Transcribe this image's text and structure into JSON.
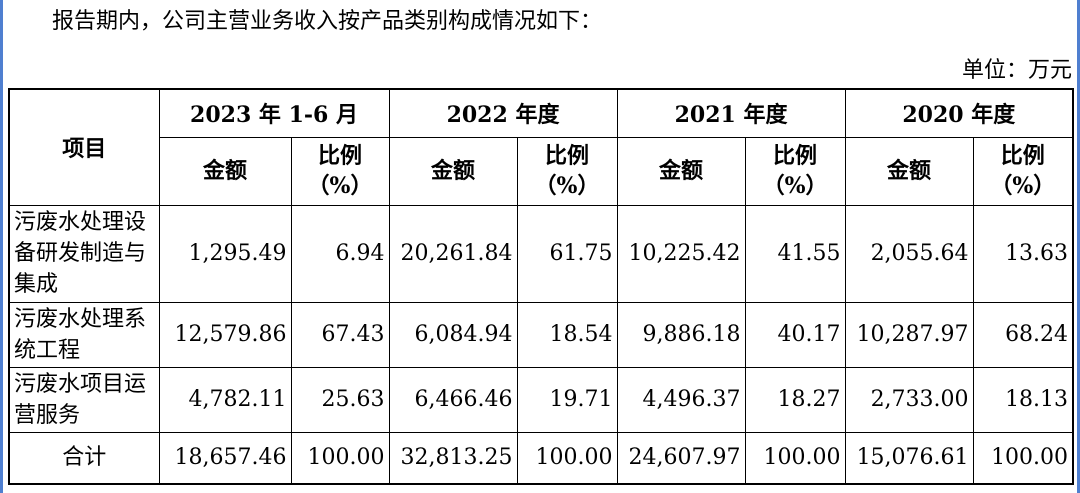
{
  "intro": "报告期内，公司主营业务收入按产品类别构成情况如下：",
  "unit": "单位：万元",
  "table": {
    "item_header": "项目",
    "periods": [
      "2023 年 1-6 月",
      "2022 年度",
      "2021 年度",
      "2020 年度"
    ],
    "amount_header": "金额",
    "ratio_header": "比例",
    "ratio_unit": "（%）",
    "rows": [
      {
        "name": "污废水处理设备研发制造与集成",
        "cells": [
          "1,295.49",
          "6.94",
          "20,261.84",
          "61.75",
          "10,225.42",
          "41.55",
          "2,055.64",
          "13.63"
        ]
      },
      {
        "name": "污废水处理系统工程",
        "cells": [
          "12,579.86",
          "67.43",
          "6,084.94",
          "18.54",
          "9,886.18",
          "40.17",
          "10,287.97",
          "68.24"
        ]
      },
      {
        "name": "污废水项目运营服务",
        "cells": [
          "4,782.11",
          "25.63",
          "6,466.46",
          "19.71",
          "4,496.37",
          "18.27",
          "2,733.00",
          "18.13"
        ]
      }
    ],
    "total": {
      "name": "合计",
      "cells": [
        "18,657.46",
        "100.00",
        "32,813.25",
        "100.00",
        "24,607.97",
        "100.00",
        "15,076.61",
        "100.00"
      ]
    }
  }
}
